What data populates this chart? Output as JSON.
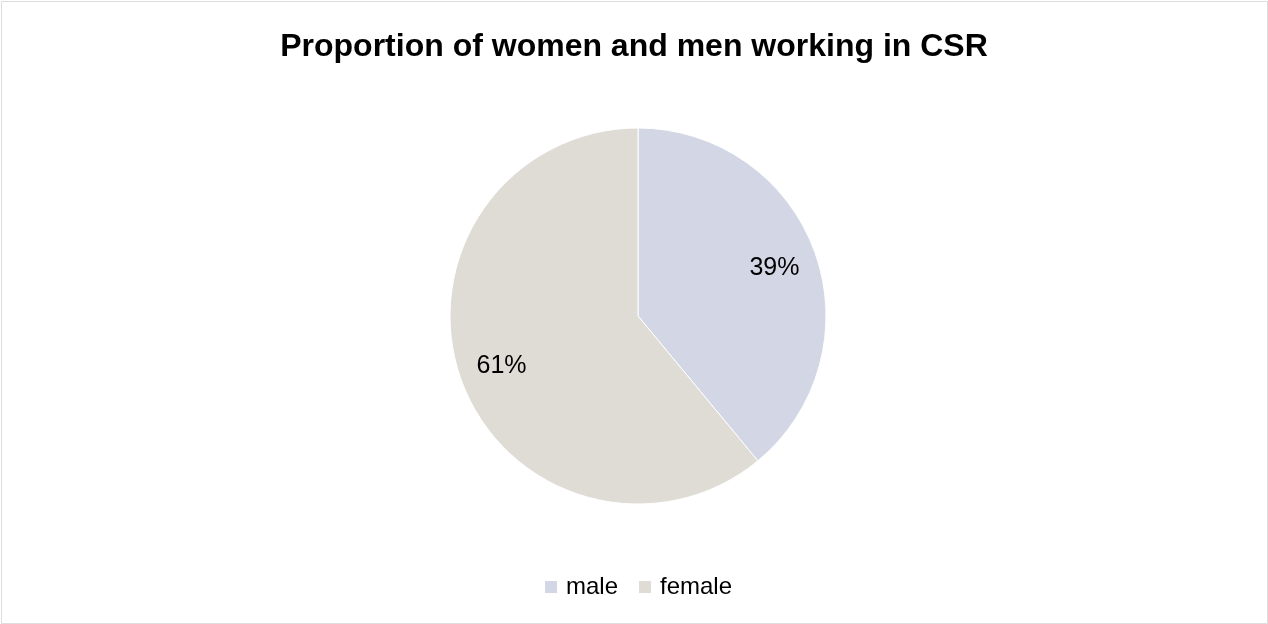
{
  "chart_data": {
    "type": "pie",
    "title": "Proportion of women and men working in CSR",
    "categories": [
      "male",
      "female"
    ],
    "values": [
      39,
      61
    ],
    "colors": [
      "#d3d6e5",
      "#dfdcd5"
    ],
    "value_labels": [
      "39%",
      "61%"
    ],
    "legend": "bottom"
  }
}
